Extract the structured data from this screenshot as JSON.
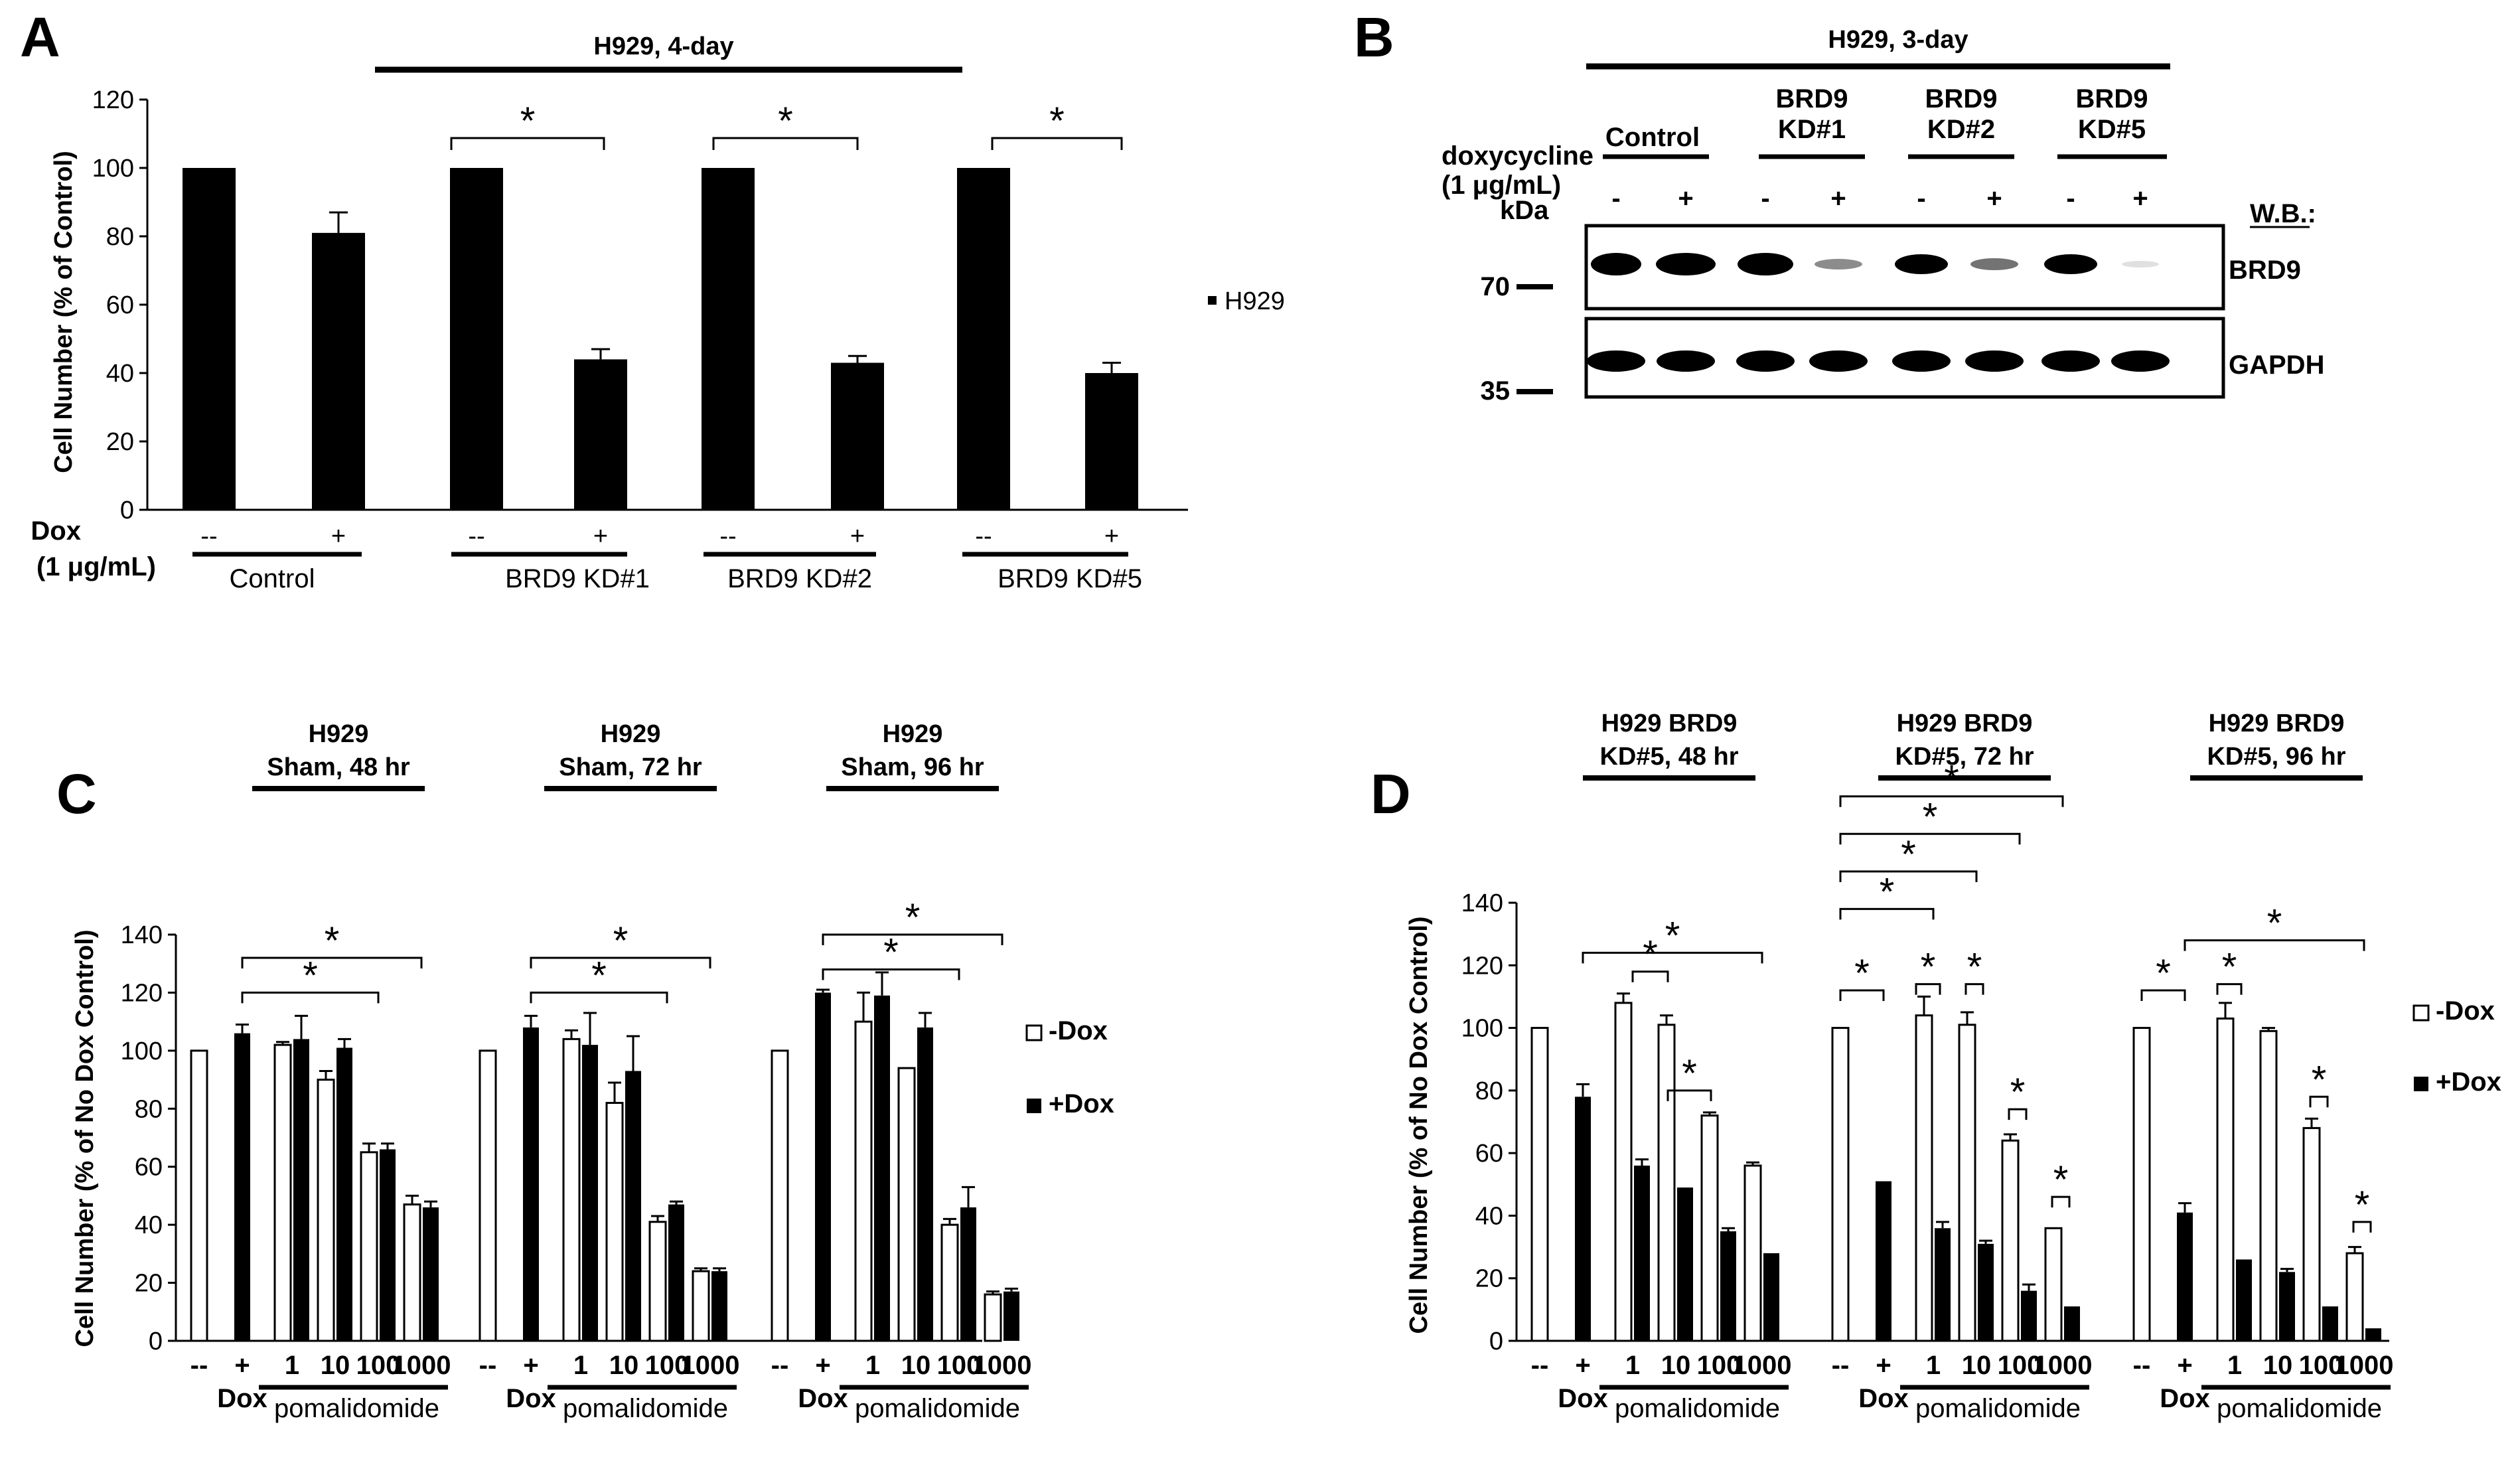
{
  "panels": {
    "A": {
      "letter": "A",
      "header": "H929, 4-day",
      "ylabel": "Cell Number (% of Control)",
      "yticks": [
        "0",
        "20",
        "40",
        "60",
        "80",
        "100",
        "120"
      ],
      "legend": "H929",
      "dox_label": "Dox",
      "dox_conc": "(1 μg/mL)",
      "dox_minus": "--",
      "dox_plus": "+",
      "groups": [
        "Control",
        "BRD9  KD#1",
        "BRD9  KD#2",
        "BRD9  KD#5"
      ],
      "star": "*"
    },
    "B": {
      "letter": "B",
      "header": "H929, 3-day",
      "doxy_label": "doxycycline",
      "doxy_conc": "(1 μg/mL)",
      "kda": "kDa",
      "wb": "W.B.:",
      "groups": [
        "Control",
        "BRD9",
        "KD#1",
        "BRD9",
        "KD#2",
        "BRD9",
        "KD#5"
      ],
      "minus": "-",
      "plus": "+",
      "marker_70": "70",
      "marker_35": "35",
      "blot1": "BRD9",
      "blot2": "GAPDH"
    },
    "C": {
      "letter": "C",
      "ylabel": "Cell Number (% of No Dox Control)",
      "yticks": [
        "0",
        "20",
        "40",
        "60",
        "80",
        "100",
        "120",
        "140"
      ],
      "headers": [
        {
          "l1": "H929",
          "l2": "Sham, 48 hr"
        },
        {
          "l1": "H929",
          "l2": "Sham, 72 hr"
        },
        {
          "l1": "H929",
          "l2": "Sham, 96 hr"
        }
      ],
      "xlabels": [
        "--",
        "+",
        "1",
        "10",
        "100",
        "1000"
      ],
      "dox": "Dox",
      "drug": "pomalidomide",
      "legend_minus": "-Dox",
      "legend_plus": "+Dox",
      "star": "*"
    },
    "D": {
      "letter": "D",
      "ylabel": "Cell Number (% of No Dox Control)",
      "yticks": [
        "0",
        "20",
        "40",
        "60",
        "80",
        "100",
        "120",
        "140"
      ],
      "headers": [
        {
          "l1": "H929 BRD9",
          "l2": "KD#5, 48 hr"
        },
        {
          "l1": "H929 BRD9",
          "l2": "KD#5, 72 hr"
        },
        {
          "l1": "H929 BRD9",
          "l2": "KD#5, 96 hr"
        }
      ],
      "xlabels": [
        "--",
        "+",
        "1",
        "10",
        "100",
        "1000"
      ],
      "dox": "Dox",
      "drug": "pomalidomide",
      "legend_minus": "-Dox",
      "legend_plus": "+Dox",
      "star": "*"
    }
  },
  "chart_data": [
    {
      "panel": "A",
      "type": "bar",
      "title": "H929, 4-day",
      "ylabel": "Cell Number (% of Control)",
      "ylim": [
        0,
        120
      ],
      "series": [
        {
          "name": "H929",
          "color": "#000000"
        }
      ],
      "bars": [
        {
          "group": "Control",
          "dox": "--",
          "value": 100,
          "err": 0
        },
        {
          "group": "Control",
          "dox": "+",
          "value": 81,
          "err": 6
        },
        {
          "group": "BRD9 KD#1",
          "dox": "--",
          "value": 100,
          "err": 0
        },
        {
          "group": "BRD9 KD#1",
          "dox": "+",
          "value": 44,
          "err": 3
        },
        {
          "group": "BRD9 KD#2",
          "dox": "--",
          "value": 100,
          "err": 0
        },
        {
          "group": "BRD9 KD#2",
          "dox": "+",
          "value": 43,
          "err": 2
        },
        {
          "group": "BRD9 KD#5",
          "dox": "--",
          "value": 100,
          "err": 0
        },
        {
          "group": "BRD9 KD#5",
          "dox": "+",
          "value": 40,
          "err": 3
        }
      ]
    },
    {
      "panel": "C",
      "type": "bar",
      "ylabel": "Cell Number (% of No Dox Control)",
      "ylim": [
        0,
        140
      ],
      "series": [
        {
          "name": "-Dox",
          "color": "#ffffff"
        },
        {
          "name": "+Dox",
          "color": "#000000"
        }
      ],
      "categories": [
        "--",
        "+",
        "1",
        "10",
        "100",
        "1000"
      ],
      "subplots": [
        {
          "title": "H929 Sham, 48 hr",
          "minus": [
            100,
            null,
            102,
            90,
            65,
            47
          ],
          "minus_err": [
            0,
            null,
            1,
            3,
            3,
            3
          ],
          "plus": [
            null,
            106,
            104,
            101,
            66,
            46
          ],
          "plus_err": [
            null,
            3,
            8,
            3,
            2,
            2
          ]
        },
        {
          "title": "H929 Sham, 72 hr",
          "minus": [
            100,
            null,
            104,
            82,
            41,
            24
          ],
          "minus_err": [
            0,
            null,
            3,
            7,
            2,
            1
          ],
          "plus": [
            null,
            108,
            102,
            93,
            47,
            24
          ],
          "plus_err": [
            null,
            4,
            11,
            12,
            1,
            1
          ]
        },
        {
          "title": "H929 Sham, 96 hr",
          "minus": [
            100,
            null,
            110,
            94,
            40,
            16
          ],
          "minus_err": [
            0,
            null,
            10,
            0,
            2,
            1
          ],
          "plus": [
            null,
            120,
            119,
            108,
            46,
            17
          ],
          "plus_err": [
            null,
            1,
            8,
            5,
            7,
            1
          ]
        }
      ]
    },
    {
      "panel": "D",
      "type": "bar",
      "ylabel": "Cell Number (% of No Dox Control)",
      "ylim": [
        0,
        140
      ],
      "series": [
        {
          "name": "-Dox",
          "color": "#ffffff"
        },
        {
          "name": "+Dox",
          "color": "#000000"
        }
      ],
      "categories": [
        "--",
        "+",
        "1",
        "10",
        "100",
        "1000"
      ],
      "subplots": [
        {
          "title": "H929 BRD9 KD#5, 48 hr",
          "minus": [
            100,
            null,
            108,
            101,
            72,
            56
          ],
          "minus_err": [
            0,
            null,
            3,
            3,
            1,
            1
          ],
          "plus": [
            null,
            78,
            56,
            49,
            35,
            28
          ],
          "plus_err": [
            null,
            4,
            2,
            0,
            1,
            0
          ]
        },
        {
          "title": "H929 BRD9 KD#5, 72 hr",
          "minus": [
            100,
            null,
            104,
            101,
            64,
            36
          ],
          "minus_err": [
            0,
            null,
            6,
            4,
            2,
            0
          ],
          "plus": [
            null,
            51,
            36,
            31,
            16,
            11
          ],
          "plus_err": [
            null,
            0,
            2,
            1,
            2,
            0
          ]
        },
        {
          "title": "H929 BRD9 KD#5, 96 hr",
          "minus": [
            100,
            null,
            103,
            99,
            68,
            28
          ],
          "minus_err": [
            0,
            null,
            5,
            1,
            3,
            2
          ],
          "plus": [
            null,
            41,
            26,
            22,
            11,
            4
          ],
          "plus_err": [
            null,
            3,
            0,
            1,
            0,
            0
          ]
        }
      ]
    }
  ]
}
